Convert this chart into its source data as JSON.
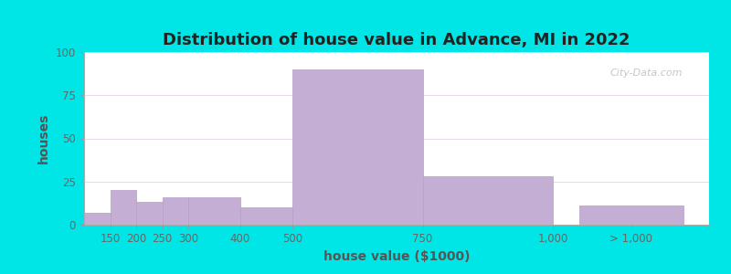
{
  "title": "Distribution of house value in Advance, MI in 2022",
  "xlabel": "house value ($1000)",
  "ylabel": "houses",
  "bar_labels": [
    "150",
    "200",
    "250",
    "300",
    "400",
    "500",
    "750",
    "1,000",
    "> 1,000"
  ],
  "bar_values": [
    7,
    20,
    13,
    16,
    16,
    10,
    90,
    28,
    11
  ],
  "bar_color": "#c5aed4",
  "bar_edgecolor": "#b89cc8",
  "ylim": [
    0,
    100
  ],
  "yticks": [
    0,
    25,
    50,
    75,
    100
  ],
  "bg_color_left": "#cce8c0",
  "bg_color_right": "#f0f5ea",
  "outer_bg": "#00e5e5",
  "title_fontsize": 13,
  "axis_label_fontsize": 10,
  "tick_fontsize": 8.5,
  "watermark_text": "City-Data.com",
  "bar_lefts": [
    100,
    150,
    200,
    250,
    300,
    400,
    500,
    750,
    1050
  ],
  "bar_widths": [
    50,
    50,
    50,
    50,
    100,
    100,
    250,
    250,
    200
  ],
  "xtick_positions": [
    150,
    200,
    250,
    300,
    400,
    500,
    750,
    1000,
    1150
  ],
  "xlim": [
    100,
    1300
  ]
}
